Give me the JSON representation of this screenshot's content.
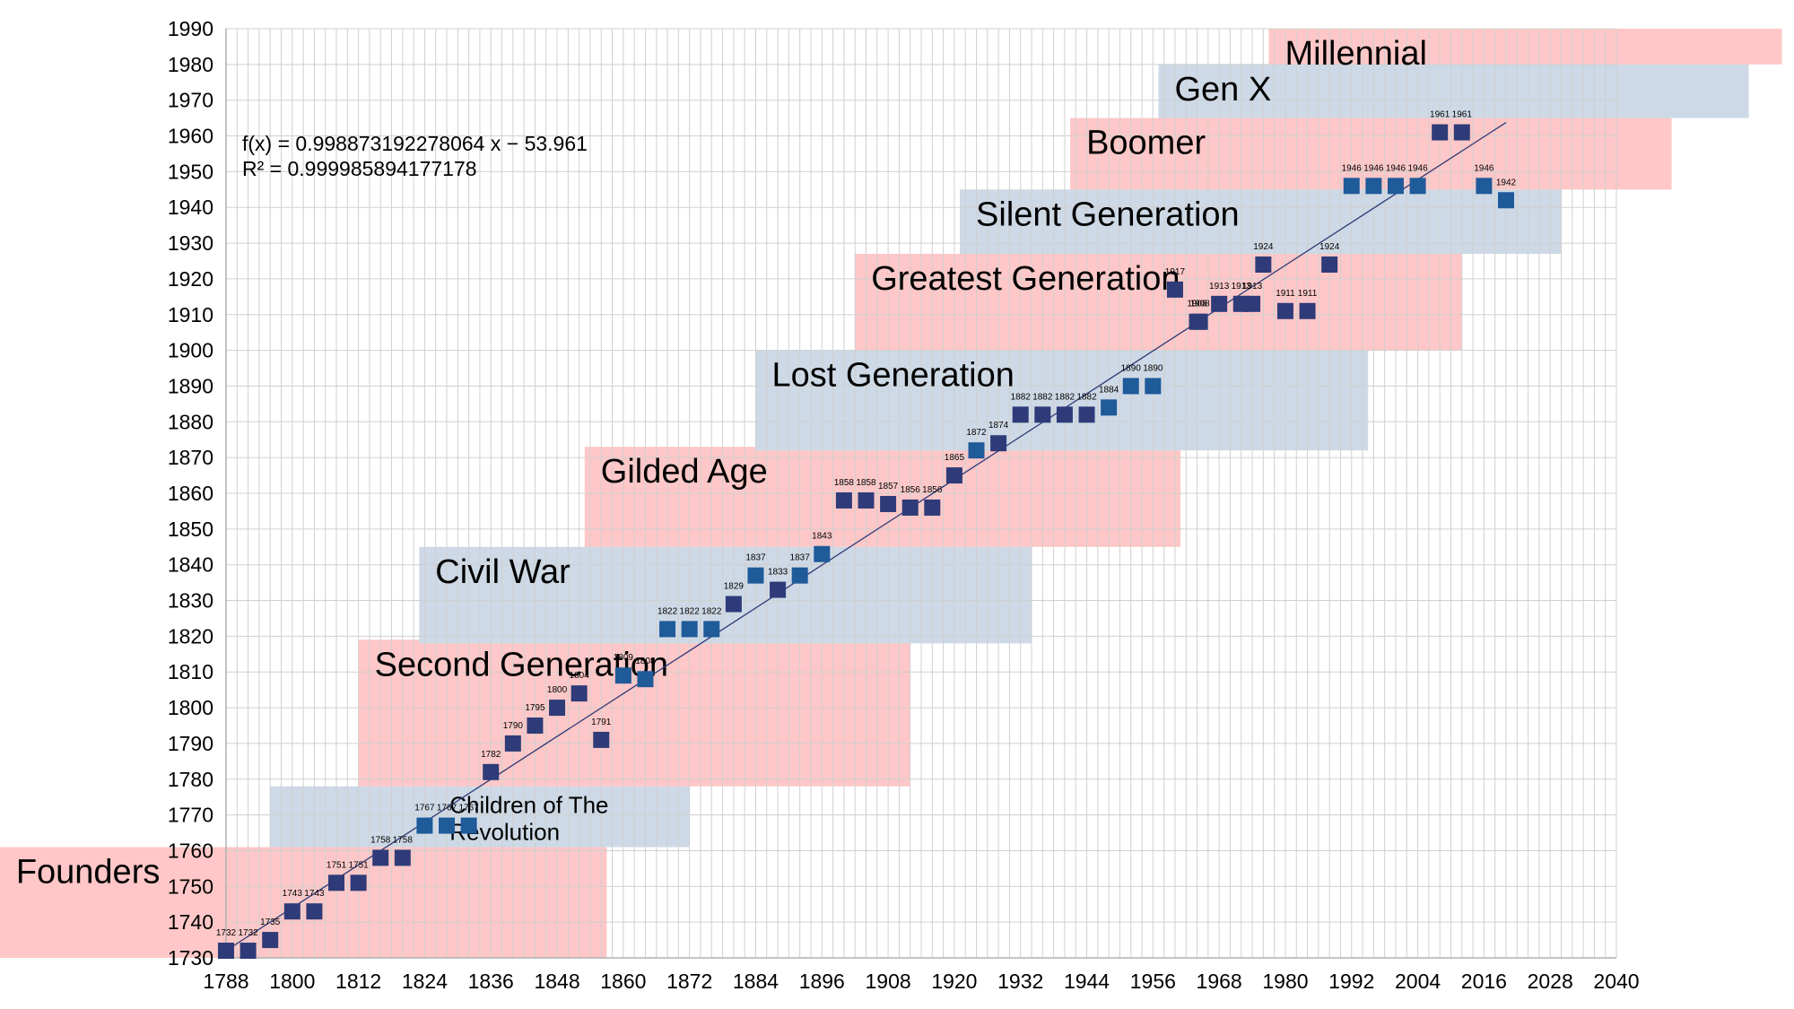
{
  "chart_data": {
    "type": "scatter",
    "title": "",
    "xlabel": "",
    "ylabel": "",
    "xlim": [
      1788,
      2040
    ],
    "ylim": [
      1730,
      1990
    ],
    "x_ticks": [
      1788,
      1800,
      1812,
      1824,
      1836,
      1848,
      1860,
      1872,
      1884,
      1896,
      1908,
      1920,
      1932,
      1944,
      1956,
      1968,
      1980,
      1992,
      2004,
      2016,
      2028,
      2040
    ],
    "y_ticks": [
      1730,
      1740,
      1750,
      1760,
      1770,
      1780,
      1790,
      1800,
      1810,
      1820,
      1830,
      1840,
      1850,
      1860,
      1870,
      1880,
      1890,
      1900,
      1910,
      1920,
      1930,
      1940,
      1950,
      1960,
      1970,
      1980,
      1990
    ],
    "grid": true,
    "colors": {
      "marker": "#2e3b78",
      "marker_highlight": "#1f5a99",
      "trendline": "#2e3b78",
      "band_red": "#ffc7c7",
      "band_blue": "#cdd9e6",
      "grid": "#d0d0d0"
    },
    "series": [
      {
        "points": [
          {
            "x": 1788,
            "y": 1732,
            "label": "1732"
          },
          {
            "x": 1792,
            "y": 1732,
            "label": "1732"
          },
          {
            "x": 1796,
            "y": 1735,
            "label": "1735"
          },
          {
            "x": 1800,
            "y": 1743,
            "label": "1743"
          },
          {
            "x": 1804,
            "y": 1743,
            "label": "1743"
          },
          {
            "x": 1808,
            "y": 1751,
            "label": "1751"
          },
          {
            "x": 1812,
            "y": 1751,
            "label": "1751"
          },
          {
            "x": 1816,
            "y": 1758,
            "label": "1758"
          },
          {
            "x": 1820,
            "y": 1758,
            "label": "1758"
          },
          {
            "x": 1824,
            "y": 1767,
            "label": "1767"
          },
          {
            "x": 1828,
            "y": 1767,
            "label": "1767"
          },
          {
            "x": 1832,
            "y": 1767,
            "label": "1767"
          },
          {
            "x": 1836,
            "y": 1782,
            "label": "1782"
          },
          {
            "x": 1840,
            "y": 1790,
            "label": "1790"
          },
          {
            "x": 1844,
            "y": 1795,
            "label": "1795"
          },
          {
            "x": 1848,
            "y": 1800,
            "label": "1800"
          },
          {
            "x": 1852,
            "y": 1804,
            "label": "1804"
          },
          {
            "x": 1856,
            "y": 1791,
            "label": "1791"
          },
          {
            "x": 1860,
            "y": 1809,
            "label": "1809"
          },
          {
            "x": 1864,
            "y": 1808,
            "label": "1808"
          },
          {
            "x": 1868,
            "y": 1822,
            "label": "1822"
          },
          {
            "x": 1872,
            "y": 1822,
            "label": "1822"
          },
          {
            "x": 1876,
            "y": 1822,
            "label": "1822"
          },
          {
            "x": 1880,
            "y": 1829,
            "label": "1829"
          },
          {
            "x": 1884,
            "y": 1837,
            "label": "1837"
          },
          {
            "x": 1888,
            "y": 1833,
            "label": "1833"
          },
          {
            "x": 1892,
            "y": 1837,
            "label": "1837"
          },
          {
            "x": 1896,
            "y": 1843,
            "label": "1843"
          },
          {
            "x": 1900,
            "y": 1858,
            "label": "1858"
          },
          {
            "x": 1904,
            "y": 1858,
            "label": "1858"
          },
          {
            "x": 1908,
            "y": 1857,
            "label": "1857"
          },
          {
            "x": 1912,
            "y": 1856,
            "label": "1856"
          },
          {
            "x": 1916,
            "y": 1856,
            "label": "1856"
          },
          {
            "x": 1920,
            "y": 1865,
            "label": "1865"
          },
          {
            "x": 1924,
            "y": 1872,
            "label": "1872"
          },
          {
            "x": 1928,
            "y": 1874,
            "label": "1874"
          },
          {
            "x": 1932,
            "y": 1882,
            "label": "1882"
          },
          {
            "x": 1936,
            "y": 1882,
            "label": "1882"
          },
          {
            "x": 1940,
            "y": 1882,
            "label": "1882"
          },
          {
            "x": 1944,
            "y": 1882,
            "label": "1882"
          },
          {
            "x": 1948,
            "y": 1884,
            "label": "1884"
          },
          {
            "x": 1952,
            "y": 1890,
            "label": "1890"
          },
          {
            "x": 1956,
            "y": 1890,
            "label": "1890"
          },
          {
            "x": 1960,
            "y": 1917,
            "label": "1917"
          },
          {
            "x": 1964,
            "y": 1908,
            "label": "1908"
          },
          {
            "x": 1964.5,
            "y": 1908,
            "label": "1908"
          },
          {
            "x": 1968,
            "y": 1913,
            "label": "1913"
          },
          {
            "x": 1972,
            "y": 1913,
            "label": "1913"
          },
          {
            "x": 1974,
            "y": 1913,
            "label": "1913"
          },
          {
            "x": 1976,
            "y": 1924,
            "label": "1924"
          },
          {
            "x": 1980,
            "y": 1911,
            "label": "1911"
          },
          {
            "x": 1984,
            "y": 1911,
            "label": "1911"
          },
          {
            "x": 1988,
            "y": 1924,
            "label": "1924"
          },
          {
            "x": 1992,
            "y": 1946,
            "label": "1946"
          },
          {
            "x": 1996,
            "y": 1946,
            "label": "1946"
          },
          {
            "x": 2000,
            "y": 1946,
            "label": "1946"
          },
          {
            "x": 2004,
            "y": 1946,
            "label": "1946"
          },
          {
            "x": 2008,
            "y": 1961,
            "label": "1961"
          },
          {
            "x": 2012,
            "y": 1961,
            "label": "1961"
          },
          {
            "x": 2016,
            "y": 1946,
            "label": "1946"
          },
          {
            "x": 2020,
            "y": 1942,
            "label": "1942"
          }
        ]
      }
    ],
    "trendline": {
      "slope": 0.998873192278064,
      "intercept": -53.961,
      "x_range": [
        1788,
        2020
      ],
      "equation_text": "f(x) = 0.998873192278064 x − 53.961",
      "r2_text": "R² = 0.999985894177178"
    },
    "annotations": [
      {
        "label": "Founders",
        "color": "red",
        "x_range": [
          1747,
          1857
        ],
        "y_range": [
          1730,
          1761
        ]
      },
      {
        "label": "Children of The Revolution",
        "lines": [
          "Children of The",
          "Revolution"
        ],
        "color": "blue",
        "x_range": [
          1796,
          1872
        ],
        "y_range": [
          1761,
          1778
        ]
      },
      {
        "label": "Second Generation",
        "color": "red",
        "x_range": [
          1812,
          1912
        ],
        "y_range": [
          1778,
          1819
        ]
      },
      {
        "label": "Civil War",
        "color": "blue",
        "x_range": [
          1823,
          1934
        ],
        "y_range": [
          1818,
          1845
        ]
      },
      {
        "label": "Gilded Age",
        "color": "red",
        "x_range": [
          1853,
          1961
        ],
        "y_range": [
          1845,
          1873
        ]
      },
      {
        "label": "Lost Generation",
        "color": "blue",
        "x_range": [
          1884,
          1995
        ],
        "y_range": [
          1872,
          1900
        ]
      },
      {
        "label": "Greatest Generation",
        "color": "red",
        "x_range": [
          1902,
          2012
        ],
        "y_range": [
          1900,
          1927
        ]
      },
      {
        "label": "Silent Generation",
        "color": "blue",
        "x_range": [
          1921,
          2030
        ],
        "y_range": [
          1927,
          1945
        ]
      },
      {
        "label": "Boomer",
        "color": "red",
        "x_range": [
          1941,
          2050
        ],
        "y_range": [
          1945,
          1965
        ]
      },
      {
        "label": "Gen X",
        "color": "blue",
        "x_range": [
          1957,
          2064
        ],
        "y_range": [
          1965,
          1980
        ]
      },
      {
        "label": "Millennial",
        "color": "red",
        "x_range": [
          1977,
          2070
        ],
        "y_range": [
          1980,
          1990
        ]
      }
    ]
  }
}
